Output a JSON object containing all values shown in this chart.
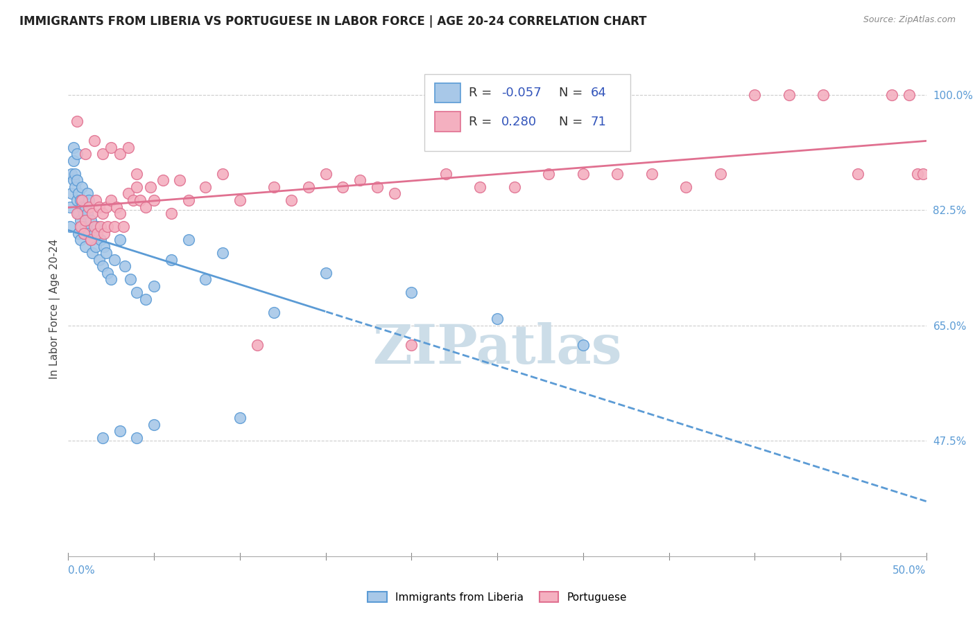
{
  "title": "IMMIGRANTS FROM LIBERIA VS PORTUGUESE IN LABOR FORCE | AGE 20-24 CORRELATION CHART",
  "source": "Source: ZipAtlas.com",
  "ylabel": "In Labor Force | Age 20-24",
  "right_yticks": [
    0.475,
    0.65,
    0.825,
    1.0
  ],
  "right_yticklabels": [
    "47.5%",
    "65.0%",
    "82.5%",
    "100.0%"
  ],
  "xmin": 0.0,
  "xmax": 0.5,
  "ymin": 0.3,
  "ymax": 1.05,
  "liberia_color": "#a8c8e8",
  "portuguese_color": "#f4b0c0",
  "liberia_edge": "#5b9bd5",
  "portuguese_edge": "#e07090",
  "liberia_line_color": "#5b9bd5",
  "portuguese_line_color": "#e07090",
  "watermark": "ZIPatlas",
  "watermark_color": "#ccdde8",
  "legend_r_color": "#3355bb",
  "legend_n_color": "#3355bb",
  "grid_color": "#cccccc",
  "blue_line_solid_end": 0.15,
  "scatter_blue_x": [
    0.001,
    0.001,
    0.002,
    0.002,
    0.003,
    0.003,
    0.003,
    0.004,
    0.004,
    0.005,
    0.005,
    0.005,
    0.006,
    0.006,
    0.006,
    0.007,
    0.007,
    0.007,
    0.008,
    0.008,
    0.008,
    0.009,
    0.009,
    0.01,
    0.01,
    0.01,
    0.011,
    0.011,
    0.012,
    0.012,
    0.013,
    0.013,
    0.014,
    0.015,
    0.016,
    0.017,
    0.018,
    0.019,
    0.02,
    0.021,
    0.022,
    0.023,
    0.025,
    0.027,
    0.03,
    0.033,
    0.036,
    0.04,
    0.045,
    0.05,
    0.06,
    0.07,
    0.08,
    0.09,
    0.1,
    0.12,
    0.15,
    0.2,
    0.25,
    0.3,
    0.02,
    0.03,
    0.04,
    0.05
  ],
  "scatter_blue_y": [
    0.83,
    0.8,
    0.88,
    0.85,
    0.92,
    0.9,
    0.87,
    0.86,
    0.88,
    0.91,
    0.87,
    0.84,
    0.85,
    0.82,
    0.79,
    0.84,
    0.81,
    0.78,
    0.86,
    0.83,
    0.8,
    0.82,
    0.79,
    0.83,
    0.8,
    0.77,
    0.85,
    0.82,
    0.79,
    0.84,
    0.81,
    0.78,
    0.76,
    0.79,
    0.77,
    0.8,
    0.75,
    0.78,
    0.74,
    0.77,
    0.76,
    0.73,
    0.72,
    0.75,
    0.78,
    0.74,
    0.72,
    0.7,
    0.69,
    0.71,
    0.75,
    0.78,
    0.72,
    0.76,
    0.51,
    0.67,
    0.73,
    0.7,
    0.66,
    0.62,
    0.48,
    0.49,
    0.48,
    0.5
  ],
  "scatter_pink_x": [
    0.005,
    0.007,
    0.008,
    0.009,
    0.01,
    0.012,
    0.013,
    0.014,
    0.015,
    0.016,
    0.017,
    0.018,
    0.019,
    0.02,
    0.021,
    0.022,
    0.023,
    0.025,
    0.027,
    0.028,
    0.03,
    0.032,
    0.035,
    0.038,
    0.04,
    0.042,
    0.045,
    0.048,
    0.05,
    0.055,
    0.06,
    0.065,
    0.07,
    0.08,
    0.09,
    0.1,
    0.11,
    0.12,
    0.13,
    0.14,
    0.15,
    0.16,
    0.17,
    0.18,
    0.19,
    0.2,
    0.22,
    0.24,
    0.26,
    0.28,
    0.3,
    0.32,
    0.34,
    0.36,
    0.38,
    0.4,
    0.42,
    0.44,
    0.46,
    0.48,
    0.49,
    0.495,
    0.498,
    0.005,
    0.01,
    0.015,
    0.02,
    0.025,
    0.03,
    0.035,
    0.04
  ],
  "scatter_pink_y": [
    0.82,
    0.8,
    0.84,
    0.79,
    0.81,
    0.83,
    0.78,
    0.82,
    0.8,
    0.84,
    0.79,
    0.83,
    0.8,
    0.82,
    0.79,
    0.83,
    0.8,
    0.84,
    0.8,
    0.83,
    0.82,
    0.8,
    0.85,
    0.84,
    0.86,
    0.84,
    0.83,
    0.86,
    0.84,
    0.87,
    0.82,
    0.87,
    0.84,
    0.86,
    0.88,
    0.84,
    0.62,
    0.86,
    0.84,
    0.86,
    0.88,
    0.86,
    0.87,
    0.86,
    0.85,
    0.62,
    0.88,
    0.86,
    0.86,
    0.88,
    0.88,
    0.88,
    0.88,
    0.86,
    0.88,
    1.0,
    1.0,
    1.0,
    0.88,
    1.0,
    1.0,
    0.88,
    0.88,
    0.96,
    0.91,
    0.93,
    0.91,
    0.92,
    0.91,
    0.92,
    0.88
  ]
}
